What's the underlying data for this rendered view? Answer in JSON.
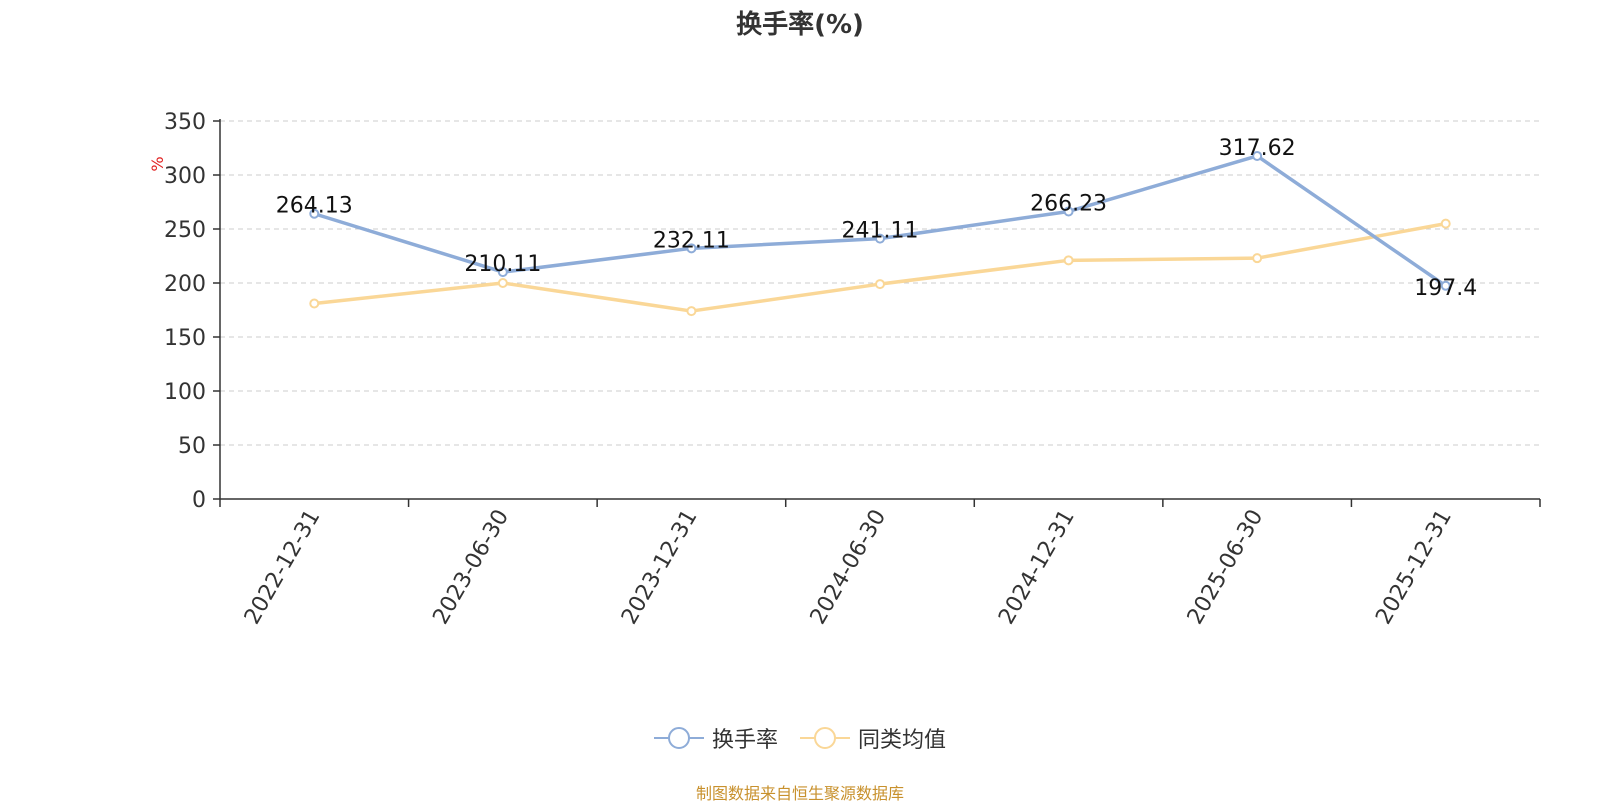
{
  "chart_data": {
    "type": "line",
    "title": "换手率(%)",
    "ylabel": "%",
    "xlabel": "",
    "ylim": [
      0,
      350
    ],
    "yticks": [
      0,
      50,
      100,
      150,
      200,
      250,
      300,
      350
    ],
    "categories": [
      "2022-12-31",
      "2023-06-30",
      "2023-12-31",
      "2024-06-30",
      "2024-12-31",
      "2025-06-30",
      "2025-12-31"
    ],
    "grid": "horizontal-dashed",
    "legend_position": "bottom-center",
    "series": [
      {
        "name": "换手率",
        "color": "#8eacd8",
        "values": [
          264.13,
          210.11,
          232.11,
          241.11,
          266.23,
          317.62,
          197.4
        ],
        "labels": [
          "264.13",
          "210.11",
          "232.11",
          "241.11",
          "266.23",
          "317.62",
          "197.4"
        ]
      },
      {
        "name": "同类均值",
        "color": "#fad797",
        "values": [
          181,
          200,
          174,
          199,
          221,
          223,
          255
        ]
      }
    ],
    "source_note": "制图数据来自恒生聚源数据库"
  }
}
